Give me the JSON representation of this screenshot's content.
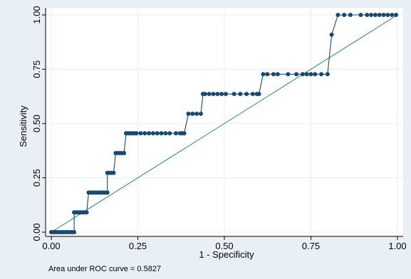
{
  "chart_data": {
    "type": "line",
    "xlabel": "1 - Specificity",
    "ylabel": "Sensitivity",
    "xlim": [
      0,
      1
    ],
    "ylim": [
      0,
      1
    ],
    "xticks": [
      "0.00",
      "0.25",
      "0.50",
      "0.75",
      "1.00"
    ],
    "yticks": [
      "0.00",
      "0.25",
      "0.50",
      "0.75",
      "1.00"
    ],
    "grid": true,
    "note": "Area under ROC curve = 0.5827",
    "colors": {
      "outer_background": "#e8eff5",
      "plot_background": "#ffffff",
      "grid": "#e9eef3",
      "roc_curve": "#1a4970",
      "reference_line": "#2e8b57"
    },
    "reference_line": {
      "x": [
        0,
        1
      ],
      "y": [
        0,
        1
      ]
    },
    "series": [
      {
        "x": [
          0.0,
          0.006,
          0.012,
          0.018,
          0.024,
          0.03,
          0.036,
          0.042,
          0.048,
          0.054,
          0.06,
          0.066,
          0.066,
          0.072,
          0.078,
          0.084,
          0.09,
          0.096,
          0.102,
          0.108,
          0.114,
          0.12,
          0.126,
          0.132,
          0.138,
          0.144,
          0.15,
          0.156,
          0.162,
          0.162,
          0.168,
          0.174,
          0.18,
          0.186,
          0.192,
          0.198,
          0.204,
          0.21,
          0.216,
          0.222,
          0.228,
          0.234,
          0.24,
          0.246,
          0.258,
          0.27,
          0.282,
          0.294,
          0.306,
          0.318,
          0.33,
          0.342,
          0.36,
          0.372,
          0.378,
          0.384,
          0.396,
          0.408,
          0.42,
          0.432,
          0.438,
          0.444,
          0.456,
          0.468,
          0.48,
          0.492,
          0.504,
          0.528,
          0.546,
          0.564,
          0.582,
          0.594,
          0.6,
          0.612,
          0.624,
          0.642,
          0.654,
          0.684,
          0.708,
          0.726,
          0.738,
          0.75,
          0.762,
          0.78,
          0.798,
          0.81,
          0.828,
          0.846,
          0.864,
          0.894,
          0.912,
          0.924,
          0.936,
          0.948,
          0.96,
          0.972,
          0.984,
          0.996
        ],
        "y": [
          0.0,
          0.0,
          0.0,
          0.0,
          0.0,
          0.0,
          0.0,
          0.0,
          0.0,
          0.0,
          0.0,
          0.0,
          0.091,
          0.091,
          0.091,
          0.091,
          0.091,
          0.091,
          0.091,
          0.182,
          0.182,
          0.182,
          0.182,
          0.182,
          0.182,
          0.182,
          0.182,
          0.182,
          0.182,
          0.273,
          0.273,
          0.273,
          0.273,
          0.364,
          0.364,
          0.364,
          0.364,
          0.364,
          0.455,
          0.455,
          0.455,
          0.455,
          0.455,
          0.455,
          0.455,
          0.455,
          0.455,
          0.455,
          0.455,
          0.455,
          0.455,
          0.455,
          0.455,
          0.455,
          0.455,
          0.455,
          0.545,
          0.545,
          0.545,
          0.545,
          0.636,
          0.636,
          0.636,
          0.636,
          0.636,
          0.636,
          0.636,
          0.636,
          0.636,
          0.636,
          0.636,
          0.636,
          0.636,
          0.727,
          0.727,
          0.727,
          0.727,
          0.727,
          0.727,
          0.727,
          0.727,
          0.727,
          0.727,
          0.727,
          0.727,
          0.909,
          1.0,
          1.0,
          1.0,
          1.0,
          1.0,
          1.0,
          1.0,
          1.0,
          1.0,
          1.0,
          1.0,
          1.0
        ]
      }
    ]
  }
}
